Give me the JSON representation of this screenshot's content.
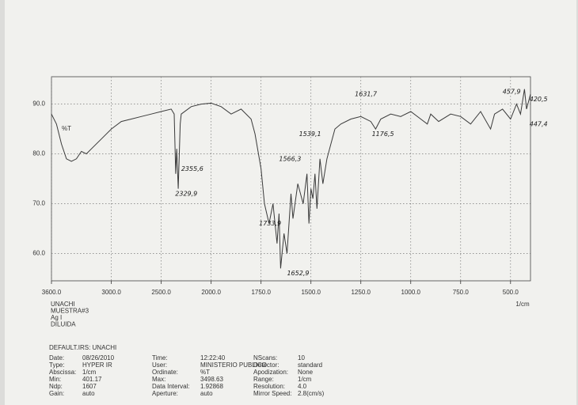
{
  "chart_data": {
    "type": "line",
    "y_label": "%T",
    "x_label": "1/cm",
    "color": "#3a3a3a",
    "grid": true,
    "xlim": [
      3600,
      400
    ],
    "x_expansion": {
      "below": 2000,
      "factor": 2
    },
    "xticks": [
      {
        "value": 3600,
        "label": "3600.0"
      },
      {
        "value": 3000,
        "label": "3000.0"
      },
      {
        "value": 2500,
        "label": "2500.0"
      },
      {
        "value": 2000,
        "label": "2000.0"
      },
      {
        "value": 1750,
        "label": "1750.0"
      },
      {
        "value": 1500,
        "label": "1500.0"
      },
      {
        "value": 1250,
        "label": "1250.0"
      },
      {
        "value": 1000,
        "label": "1000.0"
      },
      {
        "value": 750,
        "label": "750.0"
      },
      {
        "value": 500,
        "label": "500.0"
      }
    ],
    "ylim": [
      54.5,
      95.5
    ],
    "yticks": [
      {
        "value": 60,
        "label": "60.0"
      },
      {
        "value": 70,
        "label": "70.0"
      },
      {
        "value": 80,
        "label": "80.0"
      },
      {
        "value": 90,
        "label": "90.0"
      }
    ],
    "x": [
      3600,
      3550,
      3500,
      3450,
      3400,
      3350,
      3300,
      3250,
      3200,
      3100,
      3000,
      2900,
      2800,
      2700,
      2600,
      2500,
      2400,
      2370,
      2355,
      2345,
      2330,
      2310,
      2300,
      2200,
      2100,
      2000,
      1950,
      1900,
      1850,
      1800,
      1780,
      1750,
      1733,
      1710,
      1690,
      1670,
      1660,
      1652,
      1635,
      1620,
      1600,
      1590,
      1566,
      1539,
      1520,
      1510,
      1500,
      1490,
      1480,
      1470,
      1455,
      1440,
      1420,
      1400,
      1380,
      1350,
      1300,
      1250,
      1200,
      1176,
      1150,
      1100,
      1050,
      1000,
      950,
      917,
      900,
      860,
      800,
      750,
      700,
      650,
      600,
      580,
      540,
      500,
      470,
      450,
      430,
      420,
      400
    ],
    "values": [
      88,
      86,
      82,
      79,
      78.5,
      79,
      80.5,
      80,
      81,
      83,
      85,
      86.5,
      87,
      87.5,
      88,
      88.5,
      89,
      88,
      76,
      81,
      73,
      86,
      88,
      89.5,
      90,
      90.2,
      89.5,
      88,
      89,
      87,
      84,
      77,
      70,
      66,
      70,
      62,
      68,
      57,
      64,
      60,
      72,
      67,
      74,
      70,
      76,
      66,
      73,
      71,
      76,
      69,
      79,
      74,
      79,
      82,
      85,
      86,
      87,
      87.5,
      86.5,
      85,
      87,
      88,
      87.5,
      88.5,
      87,
      86,
      88,
      86.5,
      88,
      87.5,
      86,
      88.5,
      85,
      88,
      89,
      87,
      90,
      88,
      93,
      89,
      92
    ],
    "annotations": [
      {
        "text": "2355,6",
        "x": 2300,
        "y": 77
      },
      {
        "text": "2329,9",
        "x": 2360,
        "y": 72
      },
      {
        "text": "1733,9",
        "x": 1760,
        "y": 66
      },
      {
        "text": "1652,9",
        "x": 1620,
        "y": 56
      },
      {
        "text": "1566,3",
        "x": 1660,
        "y": 79
      },
      {
        "text": "1539,1",
        "x": 1560,
        "y": 84
      },
      {
        "text": "1631,7",
        "x": 1280,
        "y": 92
      },
      {
        "text": "1176,5",
        "x": 1195,
        "y": 84
      },
      {
        "text": "457,9",
        "x": 540,
        "y": 92.5
      },
      {
        "text": "420,5",
        "x": 405,
        "y": 91
      },
      {
        "text": "447,4",
        "x": 405,
        "y": 86
      }
    ]
  },
  "footer": {
    "sample": [
      "UNACHI",
      "MUESTRA#3",
      "Ag I",
      "DILUIDA"
    ],
    "file": "DEFAULT.IRS: UNACHI",
    "rows": [
      [
        "Date:",
        "08/26/2010",
        "Time:",
        "12:22:40",
        "NScans:",
        "10",
        ""
      ],
      [
        "Type:",
        "HYPER IR",
        "User:",
        "MINISTERIO PUBLICO",
        "Detector:",
        "standard",
        ""
      ],
      [
        "Abscissa:",
        "1/cm",
        "Ordinate:",
        "%T",
        "Apodization:",
        "None",
        ""
      ],
      [
        "Min:",
        "401.17",
        "Max:",
        "3498.63",
        "Range:",
        "1/cm",
        ""
      ],
      [
        "Ndp:",
        "1607",
        "Data Interval:",
        "1.92868",
        "Resolution:",
        "4.0",
        ""
      ],
      [
        "Gain:",
        "auto",
        "Aperture:",
        "auto",
        "Mirror Speed:",
        "2.8(cm/s)",
        ""
      ]
    ]
  }
}
